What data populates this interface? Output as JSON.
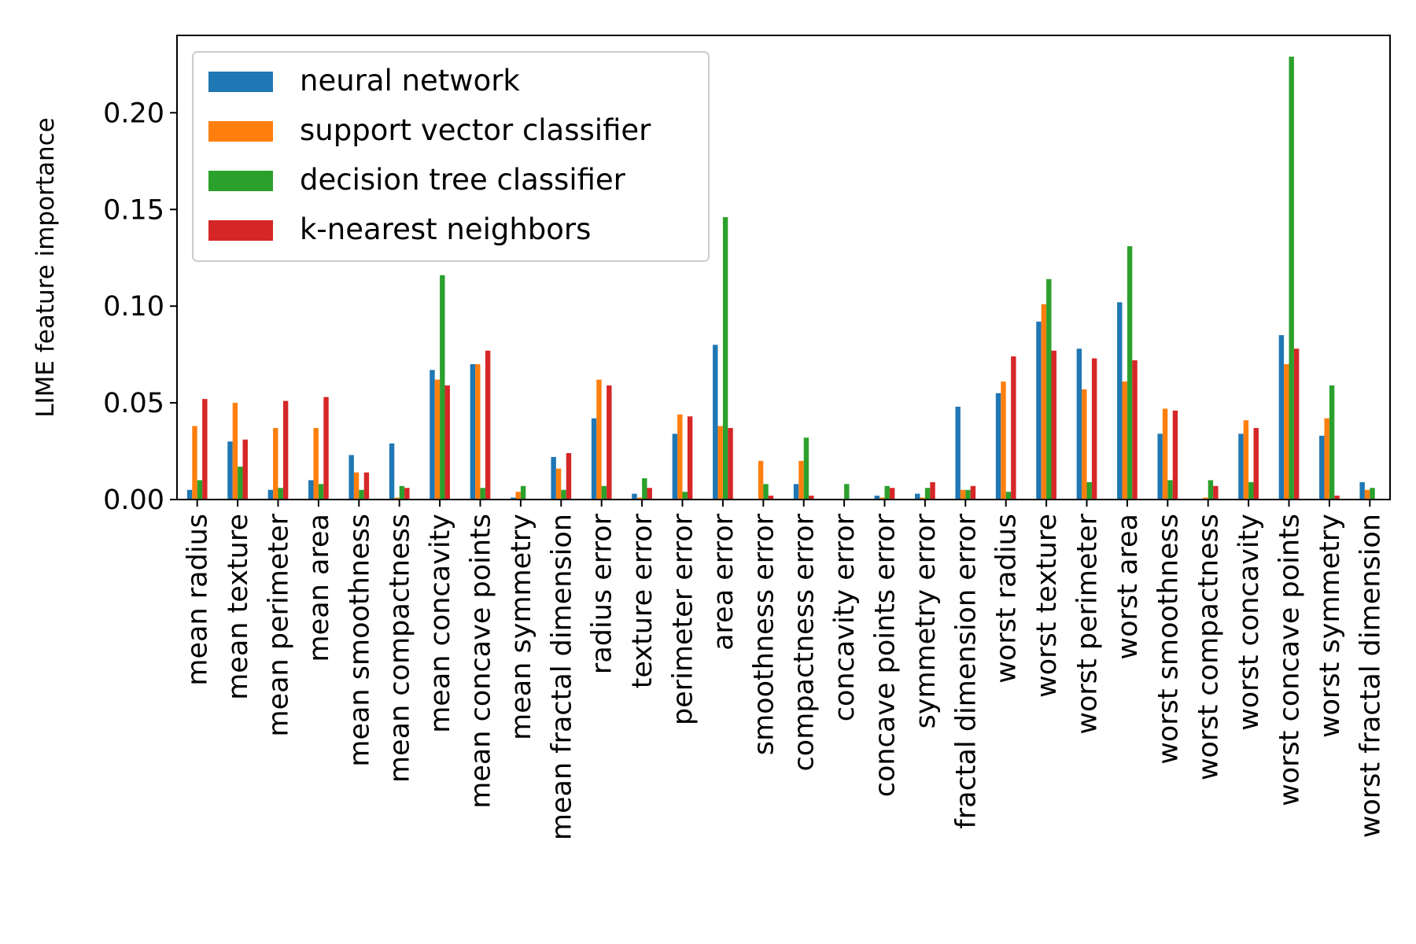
{
  "chart_data": {
    "type": "bar",
    "title": "",
    "xlabel": "",
    "ylabel": "LIME feature importance",
    "ylim": [
      0,
      0.24
    ],
    "yticks": [
      "0.00",
      "0.05",
      "0.10",
      "0.15",
      "0.20"
    ],
    "ytick_values": [
      0,
      0.05,
      0.1,
      0.15,
      0.2
    ],
    "grid": false,
    "legend_position": "top-left",
    "categories": [
      "mean radius",
      "mean texture",
      "mean perimeter",
      "mean area",
      "mean smoothness",
      "mean compactness",
      "mean concavity",
      "mean concave points",
      "mean symmetry",
      "mean fractal dimension",
      "radius error",
      "texture error",
      "perimeter error",
      "area error",
      "smoothness error",
      "compactness error",
      "concavity error",
      "concave points error",
      "symmetry error",
      "fractal dimension error",
      "worst radius",
      "worst texture",
      "worst perimeter",
      "worst area",
      "worst smoothness",
      "worst compactness",
      "worst concavity",
      "worst concave points",
      "worst symmetry",
      "worst fractal dimension"
    ],
    "series": [
      {
        "name": "neural network",
        "color": "#1f77b4",
        "values": [
          0.005,
          0.03,
          0.005,
          0.01,
          0.023,
          0.029,
          0.067,
          0.07,
          0.001,
          0.022,
          0.042,
          0.003,
          0.034,
          0.08,
          0.0,
          0.008,
          0.0,
          0.002,
          0.003,
          0.048,
          0.055,
          0.092,
          0.078,
          0.102,
          0.034,
          0.0,
          0.034,
          0.085,
          0.033,
          0.009
        ]
      },
      {
        "name": "support vector classifier",
        "color": "#ff7f0e",
        "values": [
          0.038,
          0.05,
          0.037,
          0.037,
          0.014,
          0.001,
          0.062,
          0.07,
          0.004,
          0.016,
          0.062,
          0.001,
          0.044,
          0.038,
          0.02,
          0.02,
          0.0,
          0.001,
          0.001,
          0.005,
          0.061,
          0.101,
          0.057,
          0.061,
          0.047,
          0.001,
          0.041,
          0.07,
          0.042,
          0.005
        ]
      },
      {
        "name": "decision tree classifier",
        "color": "#2ca02c",
        "values": [
          0.01,
          0.017,
          0.006,
          0.008,
          0.005,
          0.007,
          0.116,
          0.006,
          0.007,
          0.005,
          0.007,
          0.011,
          0.004,
          0.146,
          0.008,
          0.032,
          0.008,
          0.007,
          0.006,
          0.005,
          0.004,
          0.114,
          0.009,
          0.131,
          0.01,
          0.01,
          0.009,
          0.229,
          0.059,
          0.006
        ]
      },
      {
        "name": "k-nearest neighbors",
        "color": "#d62728",
        "values": [
          0.052,
          0.031,
          0.051,
          0.053,
          0.014,
          0.006,
          0.059,
          0.077,
          0.0,
          0.024,
          0.059,
          0.006,
          0.043,
          0.037,
          0.002,
          0.002,
          0.0,
          0.006,
          0.009,
          0.007,
          0.074,
          0.077,
          0.073,
          0.072,
          0.046,
          0.007,
          0.037,
          0.078,
          0.002,
          0.0
        ]
      }
    ]
  }
}
